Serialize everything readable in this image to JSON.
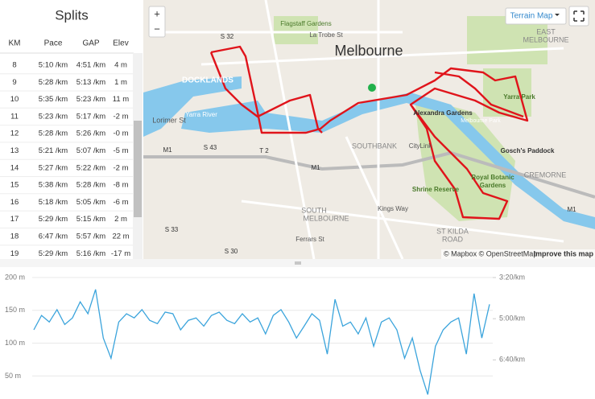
{
  "splits": {
    "title": "Splits",
    "headers": [
      "KM",
      "Pace",
      "GAP",
      "Elev"
    ],
    "rows": [
      [
        "8",
        "5:10 /km",
        "4:51 /km",
        "4 m"
      ],
      [
        "9",
        "5:28 /km",
        "5:13 /km",
        "1 m"
      ],
      [
        "10",
        "5:35 /km",
        "5:23 /km",
        "11 m"
      ],
      [
        "11",
        "5:23 /km",
        "5:17 /km",
        "-2 m"
      ],
      [
        "12",
        "5:28 /km",
        "5:26 /km",
        "-0 m"
      ],
      [
        "13",
        "5:21 /km",
        "5:07 /km",
        "-5 m"
      ],
      [
        "14",
        "5:27 /km",
        "5:22 /km",
        "-2 m"
      ],
      [
        "15",
        "5:38 /km",
        "5:28 /km",
        "-8 m"
      ],
      [
        "16",
        "5:18 /km",
        "5:05 /km",
        "-6 m"
      ],
      [
        "17",
        "5:29 /km",
        "5:15 /km",
        "2 m"
      ],
      [
        "18",
        "6:47 /km",
        "5:57 /km",
        "22 m"
      ],
      [
        "19",
        "5:29 /km",
        "5:16 /km",
        "-17 m"
      ]
    ]
  },
  "map": {
    "labels": [
      "Melbourne",
      "Flagstaff Gardens",
      "La Trobe St",
      "DOCKLANDS",
      "SOUTHBANK",
      "EAST",
      "MELBOURNE",
      "Yarra Park",
      "Alexandra Gardens",
      "Melbourne Park",
      "Gosch's Paddock",
      "CREMORNE",
      "Royal Botanic",
      "Gardens",
      "Shrine Reserve",
      "SOUTH",
      "MELBOURNE",
      "ST KILDA",
      "ROAD",
      "Kings Way",
      "Ferrars St",
      "CityLink",
      "Lorimer St",
      "Yarra River",
      "M1",
      "S 43",
      "T 2",
      "M1",
      "S 33",
      "S 30",
      "S 32",
      "M1"
    ],
    "terrain_button": "Terrain Map",
    "zoom_in": "+",
    "zoom_out": "−",
    "attribution": "© Mapbox © OpenStreetMap",
    "improve": "Improve this map"
  },
  "chart_data": {
    "type": "line",
    "ylim": [
      15,
      200
    ],
    "yticks": [
      {
        "value": 50,
        "label": "50 m"
      },
      {
        "value": 100,
        "label": "100 m"
      },
      {
        "value": 150,
        "label": "150 m"
      },
      {
        "value": 200,
        "label": "200 m"
      }
    ],
    "y2lim": [
      495,
      200
    ],
    "y2ticks": [
      {
        "value": 200,
        "label": "3:20/km"
      },
      {
        "value": 300,
        "label": "5:00/km"
      },
      {
        "value": 400,
        "label": "6:40/km"
      }
    ],
    "grid": true,
    "series": [
      {
        "color": "#3ba4dc",
        "axis": "y2",
        "values": [
          327,
          292,
          308,
          278,
          314,
          298,
          259,
          288,
          229,
          347,
          396,
          308,
          288,
          298,
          278,
          304,
          312,
          284,
          288,
          327,
          304,
          298,
          318,
          292,
          284,
          304,
          312,
          288,
          308,
          298,
          337,
          292,
          278,
          308,
          347,
          318,
          288,
          304,
          386,
          253,
          318,
          308,
          337,
          298,
          367,
          308,
          298,
          327,
          396,
          347,
          425,
          484,
          367,
          327,
          308,
          298,
          386,
          239,
          347,
          265
        ]
      }
    ]
  }
}
